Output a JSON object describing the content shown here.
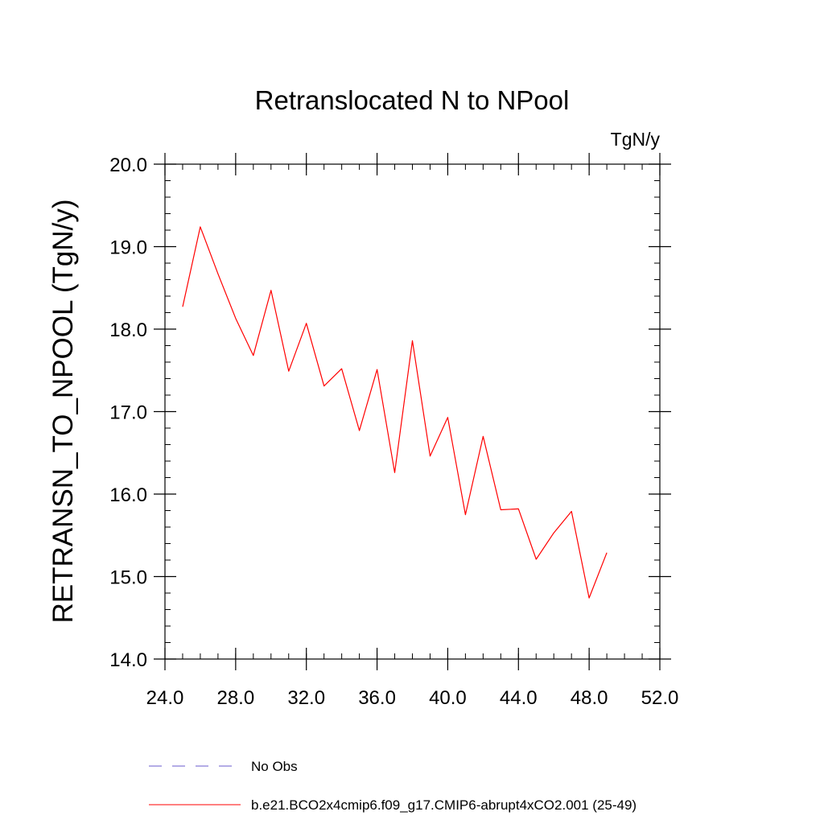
{
  "chart_data": {
    "type": "line",
    "title": "Retranslocated N to NPool",
    "units_label": "TgN/y",
    "xlabel": "",
    "ylabel": "RETRANSN_TO_NPOOL  (TgN/y)",
    "xlim": [
      24.0,
      52.0
    ],
    "ylim": [
      14.0,
      20.0
    ],
    "xticks": [
      24,
      28,
      32,
      36,
      40,
      44,
      48,
      52
    ],
    "xtick_labels": [
      "24.0",
      "28.0",
      "32.0",
      "36.0",
      "40.0",
      "44.0",
      "48.0",
      "52.0"
    ],
    "x_minor_step": 1,
    "yticks": [
      14,
      15,
      16,
      17,
      18,
      19,
      20
    ],
    "ytick_labels": [
      "14.0",
      "15.0",
      "16.0",
      "17.0",
      "18.0",
      "19.0",
      "20.0"
    ],
    "y_minor_step": 0.2,
    "grid": false,
    "legend_position": "bottom",
    "series": [
      {
        "name": "No Obs",
        "color": "#6a5acd",
        "dash": "dashed",
        "x": [],
        "y": []
      },
      {
        "name": "b.e21.BCO2x4cmip6.f09_g17.CMIP6-abrupt4xCO2.001 (25-49)",
        "color": "#ff0000",
        "dash": "solid",
        "x": [
          25,
          26,
          27,
          28,
          29,
          30,
          31,
          32,
          33,
          34,
          35,
          36,
          37,
          38,
          39,
          40,
          41,
          42,
          43,
          44,
          45,
          46,
          47,
          48,
          49
        ],
        "y": [
          18.27,
          19.24,
          18.67,
          18.13,
          17.68,
          18.47,
          17.49,
          18.07,
          17.31,
          17.52,
          16.77,
          17.51,
          16.26,
          17.86,
          16.46,
          16.93,
          15.75,
          16.7,
          15.81,
          15.82,
          15.21,
          15.53,
          15.79,
          14.74,
          15.29
        ]
      }
    ]
  }
}
